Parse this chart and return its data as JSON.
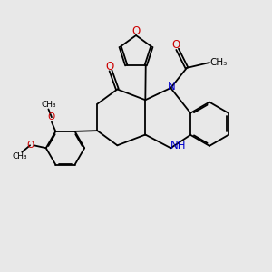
{
  "bg_color": "#e8e8e8",
  "bond_color": "#000000",
  "n_color": "#0000cc",
  "o_color": "#cc0000",
  "font_size": 7.5,
  "bond_width": 1.3,
  "xlim": [
    0,
    10
  ],
  "ylim": [
    0,
    10
  ]
}
